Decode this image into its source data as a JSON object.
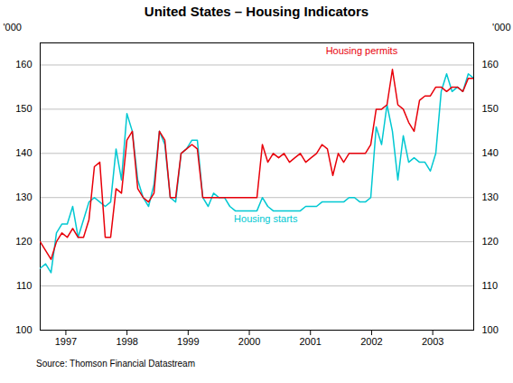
{
  "chart_data": {
    "type": "line",
    "title": "United States – Housing Indicators",
    "ylabel": "'000",
    "y2label": "'000",
    "source": "Source: Thomson Financial Datastream",
    "x": [
      1996.58,
      1996.668625,
      1996.75725,
      1996.845875,
      1996.9345,
      1997.023125,
      1997.11175,
      1997.200375,
      1997.289,
      1997.377625,
      1997.46625,
      1997.554875,
      1997.6435,
      1997.732125,
      1997.82075,
      1997.909375,
      1997.998,
      1998.086625,
      1998.17525,
      1998.263875,
      1998.3525,
      1998.441125,
      1998.52975,
      1998.618375,
      1998.707,
      1998.795625,
      1998.88425,
      1998.972875,
      1999.0615,
      1999.150125,
      1999.23875,
      1999.327375,
      1999.416,
      1999.504625,
      1999.59325,
      1999.681875,
      1999.7705,
      1999.859125,
      1999.94775,
      2000.036375,
      2000.125,
      2000.213625,
      2000.30225,
      2000.390875,
      2000.4795,
      2000.568125,
      2000.65675,
      2000.745375,
      2000.834,
      2000.922625,
      2001.01125,
      2001.099875,
      2001.1885,
      2001.277125,
      2001.36575,
      2001.454375,
      2001.543,
      2001.631625,
      2001.72025,
      2001.808875,
      2001.8975,
      2001.986125,
      2002.07475,
      2002.163375,
      2002.252,
      2002.340625,
      2002.42925,
      2002.517875,
      2002.6065,
      2002.695125,
      2002.78375,
      2002.872375,
      2002.961,
      2003.049625,
      2003.13825,
      2003.226875,
      2003.3155,
      2003.404125,
      2003.49275,
      2003.581375,
      2003.67
    ],
    "series": [
      {
        "color": "#e8000a",
        "values": [
          120,
          118,
          116,
          120,
          122,
          121,
          123,
          121,
          121,
          125,
          137,
          138,
          121,
          121,
          132,
          131,
          143,
          145,
          132,
          130,
          129,
          131,
          145,
          143,
          130,
          130,
          140,
          141,
          142,
          141,
          130,
          130,
          130,
          130,
          130,
          130,
          130,
          130,
          130,
          130,
          130,
          142,
          138,
          140,
          139,
          140,
          138,
          139,
          140,
          138,
          139,
          140,
          142,
          141,
          135,
          140,
          138,
          140,
          140,
          140,
          140,
          142,
          150,
          150,
          151,
          159,
          151,
          150,
          147,
          145,
          152,
          153,
          153,
          155,
          155,
          154,
          155,
          155,
          154,
          157,
          157
        ]
      },
      {
        "color": "#00c8d2",
        "values": [
          114,
          115,
          113,
          122,
          124,
          124,
          128,
          121,
          125,
          129,
          130,
          129,
          128,
          129,
          141,
          134,
          149,
          145,
          134,
          130,
          128,
          133,
          145,
          142,
          130,
          129,
          140,
          141,
          143,
          143,
          130,
          128,
          131,
          130,
          130,
          128,
          127,
          127,
          127,
          127,
          127,
          130,
          128,
          127,
          127,
          127,
          127,
          127,
          127,
          128,
          128,
          128,
          129,
          129,
          129,
          129,
          129,
          130,
          130,
          129,
          129,
          130,
          146,
          142,
          151,
          145,
          134,
          144,
          138,
          139,
          138,
          138,
          136,
          140,
          154,
          158,
          154,
          155,
          154,
          158,
          157
        ]
      }
    ],
    "annotations": [
      {
        "text": "Housing permits",
        "x": 2001.25,
        "y": 162.5,
        "color": "#e8000a"
      },
      {
        "text": "Housing starts",
        "x": 1999.75,
        "y": 124.5,
        "color": "#00c8d2"
      }
    ],
    "xlim": [
      1996.58,
      2003.67
    ],
    "xticks": [
      1997,
      1998,
      1999,
      2000,
      2001,
      2002,
      2003
    ],
    "ylim": [
      100,
      165
    ],
    "yticks": [
      100,
      110,
      120,
      130,
      140,
      150,
      160
    ],
    "y2lim": [
      100,
      165
    ],
    "y2ticks": [
      100,
      110,
      120,
      130,
      140,
      150,
      160
    ],
    "grid": true
  }
}
